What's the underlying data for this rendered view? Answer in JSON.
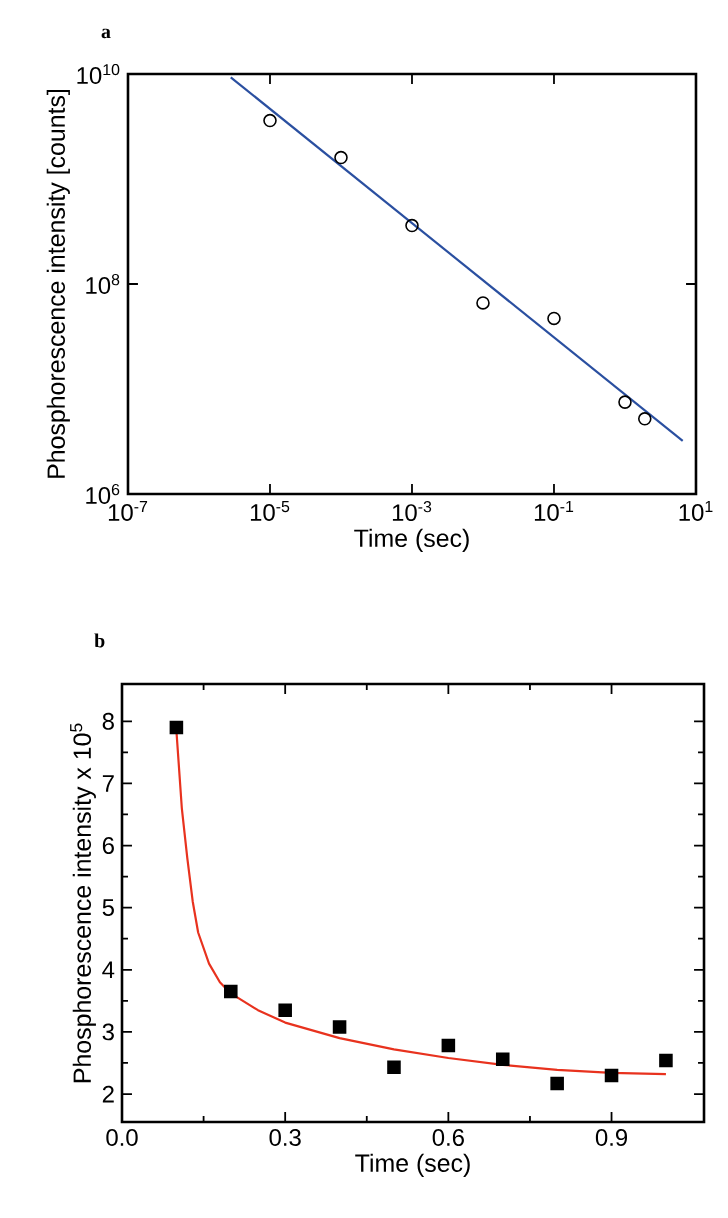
{
  "chart_data": [
    {
      "type": "scatter",
      "title": "a",
      "xlabel": "Time (sec)",
      "ylabel": "Phosphorescence intensity [counts]",
      "log": "xy",
      "xlim": [
        1e-07,
        10
      ],
      "ylim": [
        1000000.0,
        10000000000.0
      ],
      "xticks": [
        {
          "value": 1e-07,
          "label": "10$^{-7}$"
        },
        {
          "value": 1e-05,
          "label": "10$^{-5}$"
        },
        {
          "value": 0.001,
          "label": "10$^{-3}$"
        },
        {
          "value": 0.1,
          "label": "10$^{-1}$"
        },
        {
          "value": 10,
          "label": "10$^{1}$"
        }
      ],
      "yticks": [
        {
          "value": 1000000.0,
          "label": "10$^{6}$"
        },
        {
          "value": 100000000.0,
          "label": "10$^{8}$"
        },
        {
          "value": 10000000000.0,
          "label": "10$^{10}$"
        }
      ],
      "series": [
        {
          "marker": "circle",
          "color": "#000000",
          "x": [
            1e-05,
            0.0001,
            0.001,
            0.01,
            0.1,
            1,
            1.9
          ],
          "values": [
            3600000000.0,
            1600000000.0,
            360000000.0,
            66000000.0,
            47000000.0,
            7500000.0,
            5200000.0
          ]
        },
        {
          "type": "line",
          "marker": "none",
          "color": "#2a4fa0",
          "x": [
            2.8e-06,
            6.5
          ],
          "values": [
            9300000000.0,
            3200000.0
          ]
        }
      ]
    },
    {
      "type": "scatter",
      "title": "b",
      "xlabel": "Time (sec)",
      "ylabel": "Phosphorescence intensity x 10$^{5}$",
      "xlim": [
        0,
        1.07
      ],
      "ylim": [
        1.55,
        8.6
      ],
      "xticks": [
        {
          "value": 0,
          "label": "0.0"
        },
        0.3,
        0.6,
        0.9
      ],
      "yticks": [
        2,
        3,
        4,
        5,
        6,
        7,
        8
      ],
      "series": [
        {
          "marker": "square",
          "color": "#000000",
          "x": [
            0.1,
            0.2,
            0.3,
            0.4,
            0.5,
            0.6,
            0.7,
            0.8,
            0.9,
            1.0
          ],
          "values": [
            7.9,
            3.65,
            3.35,
            3.08,
            2.43,
            2.78,
            2.56,
            2.17,
            2.3,
            2.54
          ]
        },
        {
          "type": "line",
          "marker": "none",
          "color": "#e8321e",
          "x": [
            0.1,
            0.11,
            0.12,
            0.13,
            0.14,
            0.16,
            0.18,
            0.2,
            0.25,
            0.3,
            0.4,
            0.5,
            0.6,
            0.7,
            0.8,
            0.9,
            1.0
          ],
          "values": [
            7.85,
            6.6,
            5.8,
            5.1,
            4.6,
            4.1,
            3.8,
            3.62,
            3.35,
            3.15,
            2.9,
            2.72,
            2.58,
            2.47,
            2.39,
            2.34,
            2.32
          ]
        }
      ]
    }
  ]
}
